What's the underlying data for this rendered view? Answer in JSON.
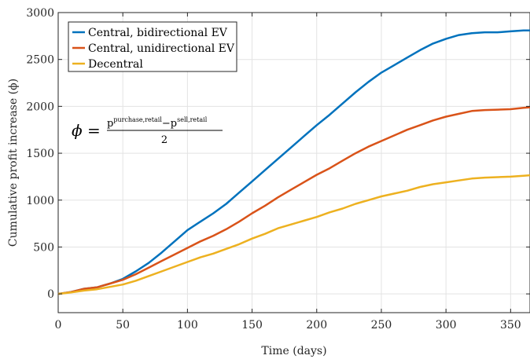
{
  "chart_data": {
    "type": "line",
    "xlabel": "Time (days)",
    "ylabel": "Cumulative profit increase (ϕ)",
    "xlim": [
      0,
      365
    ],
    "ylim": [
      -200,
      3000
    ],
    "xticks": [
      0,
      50,
      100,
      150,
      200,
      250,
      300,
      350
    ],
    "yticks": [
      0,
      500,
      1000,
      1500,
      2000,
      2500,
      3000
    ],
    "grid": true,
    "legend_position": "top-left",
    "annotation": {
      "lhs": "ϕ =",
      "numerator_left": "p",
      "numerator_left_sup": "purchase,retail",
      "numerator_op": "−",
      "numerator_right": "p",
      "numerator_right_sup": "sell,retail",
      "denominator": "2"
    },
    "x": [
      0,
      10,
      20,
      30,
      40,
      50,
      60,
      70,
      80,
      90,
      100,
      110,
      120,
      130,
      140,
      150,
      160,
      170,
      180,
      190,
      200,
      210,
      220,
      230,
      240,
      250,
      260,
      270,
      280,
      290,
      300,
      310,
      320,
      330,
      340,
      350,
      360,
      365
    ],
    "series": [
      {
        "name": "Central, bidirectional EV",
        "color": "#0072BD",
        "values": [
          0,
          20,
          55,
          70,
          110,
          160,
          240,
          330,
          440,
          560,
          680,
          770,
          860,
          960,
          1080,
          1200,
          1320,
          1440,
          1560,
          1680,
          1800,
          1910,
          2030,
          2150,
          2260,
          2360,
          2440,
          2520,
          2600,
          2670,
          2720,
          2760,
          2780,
          2790,
          2790,
          2800,
          2810,
          2810
        ]
      },
      {
        "name": "Central, unidirectional EV",
        "color": "#D95319",
        "values": [
          0,
          20,
          55,
          70,
          110,
          150,
          210,
          280,
          350,
          420,
          490,
          560,
          620,
          690,
          770,
          860,
          940,
          1030,
          1110,
          1190,
          1270,
          1340,
          1420,
          1500,
          1570,
          1630,
          1690,
          1750,
          1800,
          1850,
          1890,
          1920,
          1950,
          1960,
          1965,
          1970,
          1985,
          1990
        ]
      },
      {
        "name": "Decentral",
        "color": "#EDB120",
        "values": [
          0,
          15,
          35,
          50,
          75,
          100,
          140,
          190,
          240,
          290,
          340,
          390,
          430,
          480,
          530,
          590,
          640,
          700,
          740,
          780,
          820,
          870,
          910,
          960,
          1000,
          1040,
          1070,
          1100,
          1140,
          1170,
          1190,
          1210,
          1230,
          1240,
          1245,
          1250,
          1260,
          1265
        ]
      }
    ]
  }
}
